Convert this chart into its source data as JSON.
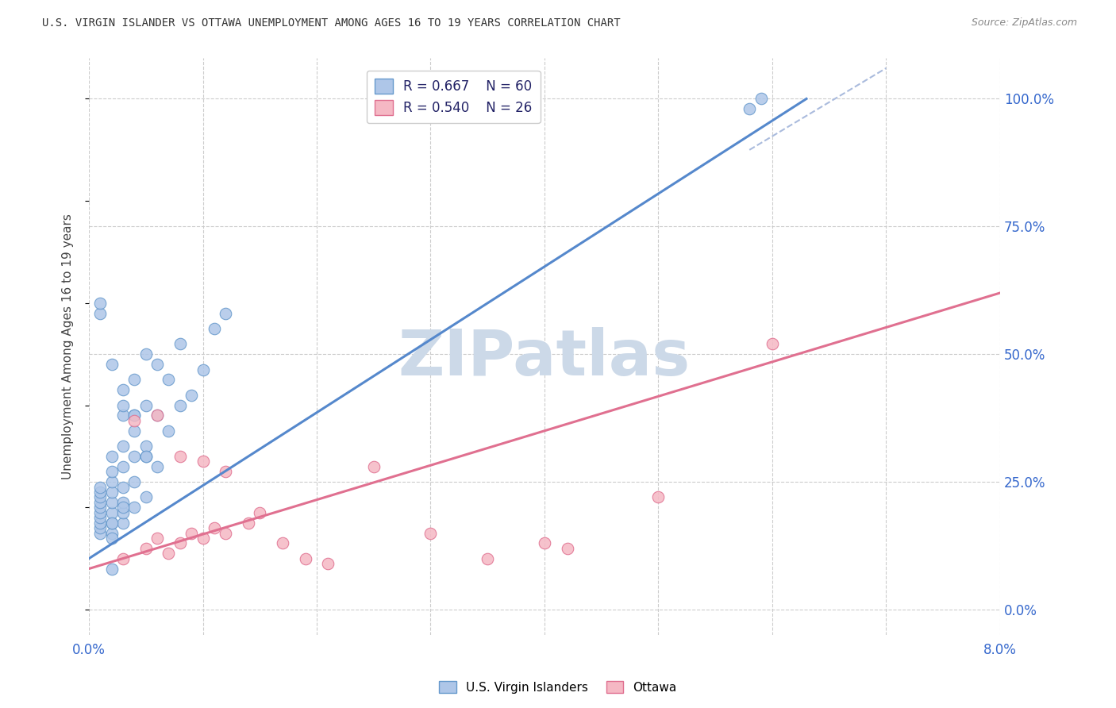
{
  "title": "U.S. VIRGIN ISLANDER VS OTTAWA UNEMPLOYMENT AMONG AGES 16 TO 19 YEARS CORRELATION CHART",
  "source": "Source: ZipAtlas.com",
  "ylabel": "Unemployment Among Ages 16 to 19 years",
  "ytick_vals": [
    0.0,
    0.25,
    0.5,
    0.75,
    1.0
  ],
  "ytick_labels": [
    "0.0%",
    "25.0%",
    "50.0%",
    "75.0%",
    "100.0%"
  ],
  "xtick_vals": [
    0.0,
    0.01,
    0.02,
    0.03,
    0.04,
    0.05,
    0.06,
    0.07,
    0.08
  ],
  "xtick_edge_labels": [
    "0.0%",
    "8.0%"
  ],
  "xlim": [
    0.0,
    0.08
  ],
  "ylim": [
    -0.05,
    1.08
  ],
  "blue_fill": "#aec6e8",
  "blue_edge": "#6699cc",
  "pink_fill": "#f5b8c4",
  "pink_edge": "#e07090",
  "line_blue": "#5588cc",
  "line_pink": "#e07090",
  "line_blue_dash": "#aabbdd",
  "watermark_color": "#ccd9e8",
  "vi_x": [
    0.001,
    0.001,
    0.001,
    0.001,
    0.001,
    0.001,
    0.001,
    0.001,
    0.001,
    0.001,
    0.002,
    0.002,
    0.002,
    0.002,
    0.002,
    0.002,
    0.002,
    0.002,
    0.003,
    0.003,
    0.003,
    0.003,
    0.003,
    0.003,
    0.003,
    0.004,
    0.004,
    0.004,
    0.004,
    0.004,
    0.005,
    0.005,
    0.005,
    0.005,
    0.006,
    0.006,
    0.006,
    0.007,
    0.007,
    0.008,
    0.008,
    0.009,
    0.01,
    0.011,
    0.012,
    0.001,
    0.002,
    0.003,
    0.003,
    0.004,
    0.004,
    0.005,
    0.005,
    0.001,
    0.002,
    0.002,
    0.002,
    0.003,
    0.058,
    0.059
  ],
  "vi_y": [
    0.15,
    0.16,
    0.17,
    0.18,
    0.19,
    0.2,
    0.21,
    0.22,
    0.23,
    0.24,
    0.15,
    0.17,
    0.19,
    0.21,
    0.23,
    0.25,
    0.27,
    0.3,
    0.17,
    0.19,
    0.21,
    0.24,
    0.28,
    0.32,
    0.38,
    0.2,
    0.25,
    0.3,
    0.38,
    0.45,
    0.22,
    0.3,
    0.4,
    0.5,
    0.28,
    0.38,
    0.48,
    0.35,
    0.45,
    0.4,
    0.52,
    0.42,
    0.47,
    0.55,
    0.58,
    0.58,
    0.48,
    0.43,
    0.4,
    0.38,
    0.35,
    0.32,
    0.3,
    0.6,
    0.17,
    0.14,
    0.08,
    0.2,
    0.98,
    1.0
  ],
  "ot_x": [
    0.003,
    0.005,
    0.006,
    0.007,
    0.008,
    0.009,
    0.01,
    0.011,
    0.012,
    0.014,
    0.015,
    0.017,
    0.019,
    0.021,
    0.025,
    0.03,
    0.035,
    0.04,
    0.042,
    0.05,
    0.06,
    0.004,
    0.006,
    0.008,
    0.01,
    0.012
  ],
  "ot_y": [
    0.1,
    0.12,
    0.14,
    0.11,
    0.13,
    0.15,
    0.14,
    0.16,
    0.15,
    0.17,
    0.19,
    0.13,
    0.1,
    0.09,
    0.28,
    0.15,
    0.1,
    0.13,
    0.12,
    0.22,
    0.52,
    0.37,
    0.38,
    0.3,
    0.29,
    0.27
  ],
  "blue_line_x": [
    0.0,
    0.063
  ],
  "blue_line_y": [
    0.1,
    1.0
  ],
  "pink_line_x": [
    0.0,
    0.08
  ],
  "pink_line_y": [
    0.08,
    0.62
  ]
}
